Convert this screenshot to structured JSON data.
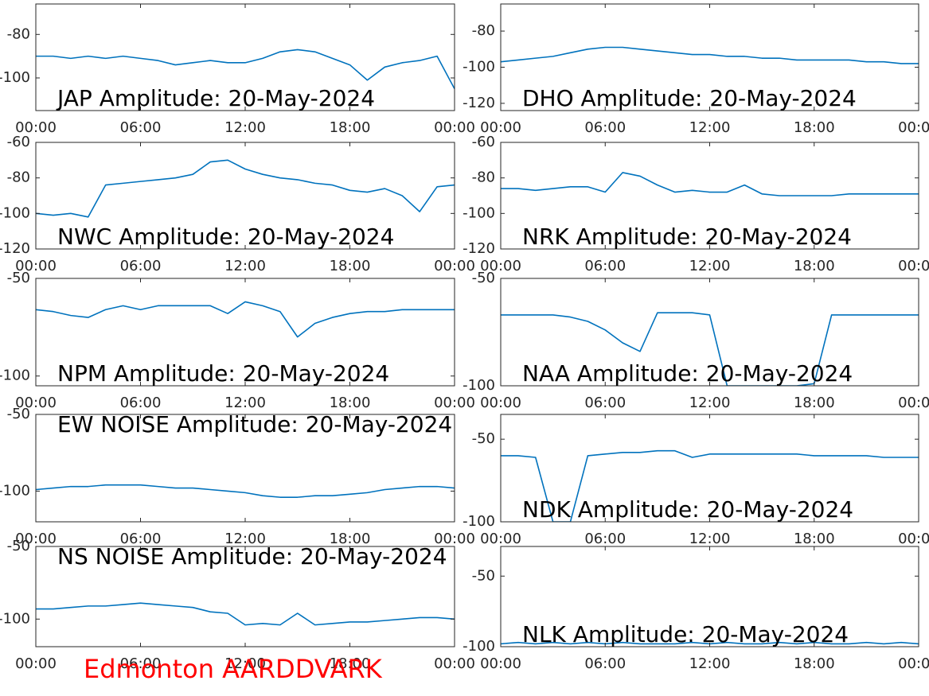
{
  "chart_data": [
    {
      "type": "line",
      "title": "JAP Amplitude: 20-May-2024",
      "color": "#0072bd",
      "x": [
        0,
        1,
        2,
        3,
        4,
        5,
        6,
        7,
        8,
        9,
        10,
        11,
        12,
        13,
        14,
        15,
        16,
        17,
        18,
        19,
        20,
        21,
        22,
        23,
        24
      ],
      "values": [
        -90,
        -90,
        -91,
        -90,
        -91,
        -90,
        -91,
        -92,
        -94,
        -93,
        -92,
        -93,
        -93,
        -91,
        -88,
        -87,
        -88,
        -91,
        -94,
        -101,
        -95,
        -93,
        -92,
        -90,
        -105
      ],
      "xlim": [
        0,
        24
      ],
      "xticks": [
        {
          "value": 0,
          "label": "00:00"
        },
        {
          "value": 6,
          "label": "06:00"
        },
        {
          "value": 12,
          "label": "12:00"
        },
        {
          "value": 18,
          "label": "18:00"
        },
        {
          "value": 24,
          "label": "00:00"
        }
      ],
      "ylim": [
        -115,
        -66
      ],
      "yticks": [
        -100,
        -80
      ]
    },
    {
      "type": "line",
      "title": "DHO Amplitude: 20-May-2024",
      "color": "#0072bd",
      "x": [
        0,
        1,
        2,
        3,
        4,
        5,
        6,
        7,
        8,
        9,
        10,
        11,
        12,
        13,
        14,
        15,
        16,
        17,
        18,
        19,
        20,
        21,
        22,
        23,
        24
      ],
      "values": [
        -97,
        -96,
        -95,
        -94,
        -92,
        -90,
        -89,
        -89,
        -90,
        -91,
        -92,
        -93,
        -93,
        -94,
        -94,
        -95,
        -95,
        -96,
        -96,
        -96,
        -96,
        -97,
        -97,
        -98,
        -98
      ],
      "xlim": [
        0,
        24
      ],
      "xticks": [
        {
          "value": 0,
          "label": "00:00"
        },
        {
          "value": 6,
          "label": "06:00"
        },
        {
          "value": 12,
          "label": "12:00"
        },
        {
          "value": 18,
          "label": "18:00"
        },
        {
          "value": 24,
          "label": "00:00"
        }
      ],
      "ylim": [
        -124,
        -65
      ],
      "yticks": [
        -120,
        -100,
        -80
      ]
    },
    {
      "type": "line",
      "title": "NWC Amplitude: 20-May-2024",
      "color": "#0072bd",
      "x": [
        0,
        1,
        2,
        3,
        4,
        5,
        6,
        7,
        8,
        9,
        10,
        11,
        12,
        13,
        14,
        15,
        16,
        17,
        18,
        19,
        20,
        21,
        22,
        23,
        24
      ],
      "values": [
        -100,
        -101,
        -100,
        -102,
        -84,
        -83,
        -82,
        -81,
        -80,
        -78,
        -71,
        -70,
        -75,
        -78,
        -80,
        -81,
        -83,
        -84,
        -87,
        -88,
        -86,
        -90,
        -99,
        -85,
        -84
      ],
      "xlim": [
        0,
        24
      ],
      "xticks": [
        {
          "value": 0,
          "label": "00:00"
        },
        {
          "value": 6,
          "label": "06:00"
        },
        {
          "value": 12,
          "label": "12:00"
        },
        {
          "value": 18,
          "label": "18:00"
        },
        {
          "value": 24,
          "label": "00:00"
        }
      ],
      "ylim": [
        -120,
        -60
      ],
      "yticks": [
        -120,
        -100,
        -80,
        -60
      ]
    },
    {
      "type": "line",
      "title": "NRK Amplitude: 20-May-2024",
      "color": "#0072bd",
      "x": [
        0,
        1,
        2,
        3,
        4,
        5,
        6,
        7,
        8,
        9,
        10,
        11,
        12,
        13,
        14,
        15,
        16,
        17,
        18,
        19,
        20,
        21,
        22,
        23,
        24
      ],
      "values": [
        -86,
        -86,
        -87,
        -86,
        -85,
        -85,
        -88,
        -77,
        -79,
        -84,
        -88,
        -87,
        -88,
        -88,
        -84,
        -89,
        -90,
        -90,
        -90,
        -90,
        -89,
        -89,
        -89,
        -89,
        -89
      ],
      "xlim": [
        0,
        24
      ],
      "xticks": [
        {
          "value": 0,
          "label": "00:00"
        },
        {
          "value": 6,
          "label": "06:00"
        },
        {
          "value": 12,
          "label": "12:00"
        },
        {
          "value": 18,
          "label": "18:00"
        },
        {
          "value": 24,
          "label": "00:00"
        }
      ],
      "ylim": [
        -120,
        -60
      ],
      "yticks": [
        -120,
        -100,
        -80,
        -60
      ]
    },
    {
      "type": "line",
      "title": "NPM Amplitude: 20-May-2024",
      "color": "#0072bd",
      "x": [
        0,
        1,
        2,
        3,
        4,
        5,
        6,
        7,
        8,
        9,
        10,
        11,
        12,
        13,
        14,
        15,
        16,
        17,
        18,
        19,
        20,
        21,
        22,
        23,
        24
      ],
      "values": [
        -66,
        -67,
        -69,
        -70,
        -66,
        -64,
        -66,
        -64,
        -64,
        -64,
        -64,
        -68,
        -62,
        -64,
        -67,
        -80,
        -73,
        -70,
        -68,
        -67,
        -67,
        -66,
        -66,
        -66,
        -66
      ],
      "xlim": [
        0,
        24
      ],
      "xticks": [
        {
          "value": 0,
          "label": "00:00"
        },
        {
          "value": 6,
          "label": "06:00"
        },
        {
          "value": 12,
          "label": "12:00"
        },
        {
          "value": 18,
          "label": "18:00"
        },
        {
          "value": 24,
          "label": "00:00"
        }
      ],
      "ylim": [
        -105,
        -50
      ],
      "yticks": [
        -100,
        -50
      ]
    },
    {
      "type": "line",
      "title": "NAA Amplitude: 20-May-2024",
      "color": "#0072bd",
      "x": [
        0,
        1,
        2,
        3,
        4,
        5,
        6,
        7,
        8,
        9,
        10,
        11,
        12,
        13,
        14,
        15,
        16,
        17,
        18,
        19,
        20,
        21,
        22,
        23,
        24
      ],
      "values": [
        -67,
        -67,
        -67,
        -67,
        -68,
        -70,
        -74,
        -80,
        -84,
        -66,
        -66,
        -66,
        -67,
        -100,
        -100,
        -100,
        -100,
        -100,
        -99,
        -67,
        -67,
        -67,
        -67,
        -67,
        -67
      ],
      "xlim": [
        0,
        24
      ],
      "xticks": [
        {
          "value": 0,
          "label": "00:00"
        },
        {
          "value": 6,
          "label": "06:00"
        },
        {
          "value": 12,
          "label": "12:00"
        },
        {
          "value": 18,
          "label": "18:00"
        },
        {
          "value": 24,
          "label": "00:00"
        }
      ],
      "ylim": [
        -100,
        -50
      ],
      "yticks": [
        -100,
        -50
      ]
    },
    {
      "type": "line",
      "title": "EW NOISE Amplitude: 20-May-2024",
      "color": "#0072bd",
      "x": [
        0,
        1,
        2,
        3,
        4,
        5,
        6,
        7,
        8,
        9,
        10,
        11,
        12,
        13,
        14,
        15,
        16,
        17,
        18,
        19,
        20,
        21,
        22,
        23,
        24
      ],
      "values": [
        -99,
        -98,
        -97,
        -97,
        -96,
        -96,
        -96,
        -97,
        -98,
        -98,
        -99,
        -100,
        -101,
        -103,
        -104,
        -104,
        -103,
        -103,
        -102,
        -101,
        -99,
        -98,
        -97,
        -97,
        -98
      ],
      "xlim": [
        0,
        24
      ],
      "xticks": [
        {
          "value": 0,
          "label": "00:00"
        },
        {
          "value": 6,
          "label": "06:00"
        },
        {
          "value": 12,
          "label": "12:00"
        },
        {
          "value": 18,
          "label": "18:00"
        },
        {
          "value": 24,
          "label": "00:00"
        }
      ],
      "ylim": [
        -120,
        -50
      ],
      "yticks": [
        -100,
        -50
      ]
    },
    {
      "type": "line",
      "title": "NDK Amplitude: 20-May-2024",
      "color": "#0072bd",
      "x": [
        0,
        1,
        2,
        3,
        4,
        5,
        6,
        7,
        8,
        9,
        10,
        11,
        12,
        13,
        14,
        15,
        16,
        17,
        18,
        19,
        20,
        21,
        22,
        23,
        24
      ],
      "values": [
        -60,
        -60,
        -61,
        -100,
        -100,
        -60,
        -59,
        -58,
        -58,
        -57,
        -57,
        -61,
        -59,
        -59,
        -59,
        -59,
        -59,
        -59,
        -60,
        -60,
        -60,
        -60,
        -61,
        -61,
        -61
      ],
      "xlim": [
        0,
        24
      ],
      "xticks": [
        {
          "value": 0,
          "label": "00:00"
        },
        {
          "value": 6,
          "label": "06:00"
        },
        {
          "value": 12,
          "label": "12:00"
        },
        {
          "value": 18,
          "label": "18:00"
        },
        {
          "value": 24,
          "label": "00:00"
        }
      ],
      "ylim": [
        -100,
        -35
      ],
      "yticks": [
        -100,
        -50
      ]
    },
    {
      "type": "line",
      "title": "NS NOISE Amplitude: 20-May-2024",
      "color": "#0072bd",
      "x": [
        0,
        1,
        2,
        3,
        4,
        5,
        6,
        7,
        8,
        9,
        10,
        11,
        12,
        13,
        14,
        15,
        16,
        17,
        18,
        19,
        20,
        21,
        22,
        23,
        24
      ],
      "values": [
        -93,
        -93,
        -92,
        -91,
        -91,
        -90,
        -89,
        -90,
        -91,
        -92,
        -95,
        -96,
        -104,
        -103,
        -104,
        -96,
        -104,
        -103,
        -102,
        -102,
        -101,
        -100,
        -99,
        -99,
        -100
      ],
      "xlim": [
        0,
        24
      ],
      "xticks": [
        {
          "value": 0,
          "label": "00:00"
        },
        {
          "value": 6,
          "label": "06:00"
        },
        {
          "value": 12,
          "label": "12:00"
        },
        {
          "value": 18,
          "label": "18:00"
        },
        {
          "value": 24,
          "label": "00:00"
        }
      ],
      "ylim": [
        -119,
        -50
      ],
      "yticks": [
        -100,
        -50
      ]
    },
    {
      "type": "line",
      "title": "NLK Amplitude: 20-May-2024",
      "color": "#0072bd",
      "x": [
        0,
        1,
        2,
        3,
        4,
        5,
        6,
        7,
        8,
        9,
        10,
        11,
        12,
        13,
        14,
        15,
        16,
        17,
        18,
        19,
        20,
        21,
        22,
        23,
        24
      ],
      "values": [
        -98,
        -97,
        -98,
        -97,
        -98,
        -97,
        -98,
        -97,
        -98,
        -98,
        -98,
        -97,
        -98,
        -97,
        -98,
        -98,
        -97,
        -98,
        -97,
        -98,
        -98,
        -97,
        -98,
        -97,
        -98
      ],
      "xlim": [
        0,
        24
      ],
      "xticks": [
        {
          "value": 0,
          "label": "00:00"
        },
        {
          "value": 6,
          "label": "06:00"
        },
        {
          "value": 12,
          "label": "12:00"
        },
        {
          "value": 18,
          "label": "18:00"
        },
        {
          "value": 24,
          "label": "00:00"
        }
      ],
      "ylim": [
        -100,
        -29
      ],
      "yticks": [
        -100,
        -50
      ]
    }
  ],
  "footer": "Edmonton AARDDVARK"
}
